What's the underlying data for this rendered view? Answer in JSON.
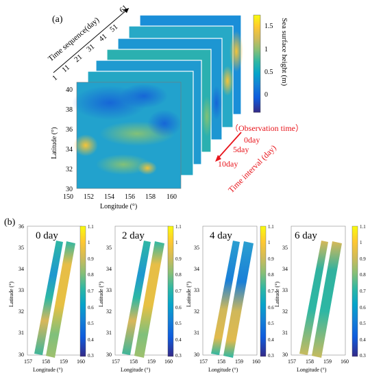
{
  "panel_a": {
    "label": "(a)",
    "time_axis_title": "Time sequence(day)",
    "time_ticks": [
      "1",
      "11",
      "21",
      "31",
      "41",
      "51",
      "61"
    ],
    "colorbar_title": "Sea surface height (m)",
    "colorbar_ticks": [
      "1.5",
      "1",
      "0.5",
      "0"
    ],
    "xlabel": "Longitude (°)",
    "ylabel": "Latitude (°)",
    "xticks": [
      "150",
      "152",
      "154",
      "156",
      "158",
      "160"
    ],
    "yticks": [
      "40",
      "38",
      "36",
      "34",
      "32",
      "30"
    ],
    "annotation": {
      "observation": "（Observation time）",
      "day0": "0day",
      "day5": "5day",
      "day10": "10day",
      "interval": "Time interval (day)"
    }
  },
  "panel_b": {
    "label": "(b)",
    "xlabel": "Longitude (°)",
    "ylabel": "Latitude (°)",
    "xticks": [
      "157",
      "158",
      "159",
      "160"
    ],
    "yticks": [
      "35",
      "34",
      "33",
      "32",
      "31",
      "30"
    ],
    "yticks_first": [
      "36",
      "35",
      "34",
      "33",
      "32",
      "31",
      "30"
    ],
    "colorbar_ticks": [
      "1.1",
      "1",
      "0.9",
      "0.8",
      "0.7",
      "0.6",
      "0.5",
      "0.4",
      "0.3"
    ],
    "maps": [
      {
        "title": "0 day"
      },
      {
        "title": "2 day"
      },
      {
        "title": "4 day"
      },
      {
        "title": "6 day"
      }
    ]
  },
  "colors": {
    "parula": [
      "#352a87",
      "#0f5cdd",
      "#1481d6",
      "#06a4ca",
      "#2eb7a4",
      "#87bf77",
      "#d1bb59",
      "#fec832",
      "#f9fb0e"
    ],
    "annotation_red": "#e8141b"
  }
}
